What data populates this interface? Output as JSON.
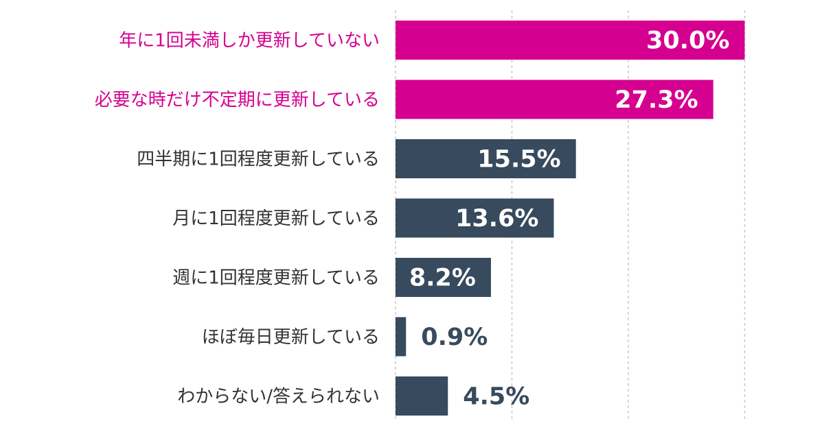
{
  "chart_data": {
    "type": "bar",
    "orientation": "horizontal",
    "categories": [
      "年に1回未満しか更新していない",
      "必要な時だけ不定期に更新している",
      "四半期に1回程度更新している",
      "月に1回程度更新している",
      "週に1回程度更新している",
      "ほぼ毎日更新している",
      "わからない/答えられない"
    ],
    "values": [
      30.0,
      27.3,
      15.5,
      13.6,
      8.2,
      0.9,
      4.5
    ],
    "value_labels": [
      "30.0%",
      "27.3%",
      "15.5%",
      "13.6%",
      "8.2%",
      "0.9%",
      "4.5%"
    ],
    "highlighted": [
      true,
      true,
      false,
      false,
      false,
      false,
      false
    ],
    "xlim": [
      0,
      30
    ],
    "grid": "vertical dashed",
    "legend": "none",
    "colors": {
      "highlight": "#d5008f",
      "normal": "#374a5e",
      "grid": "#c8c8c8",
      "label_dark": "#333333",
      "value_outside": "#374a5e",
      "value_inside": "#ffffff"
    }
  }
}
